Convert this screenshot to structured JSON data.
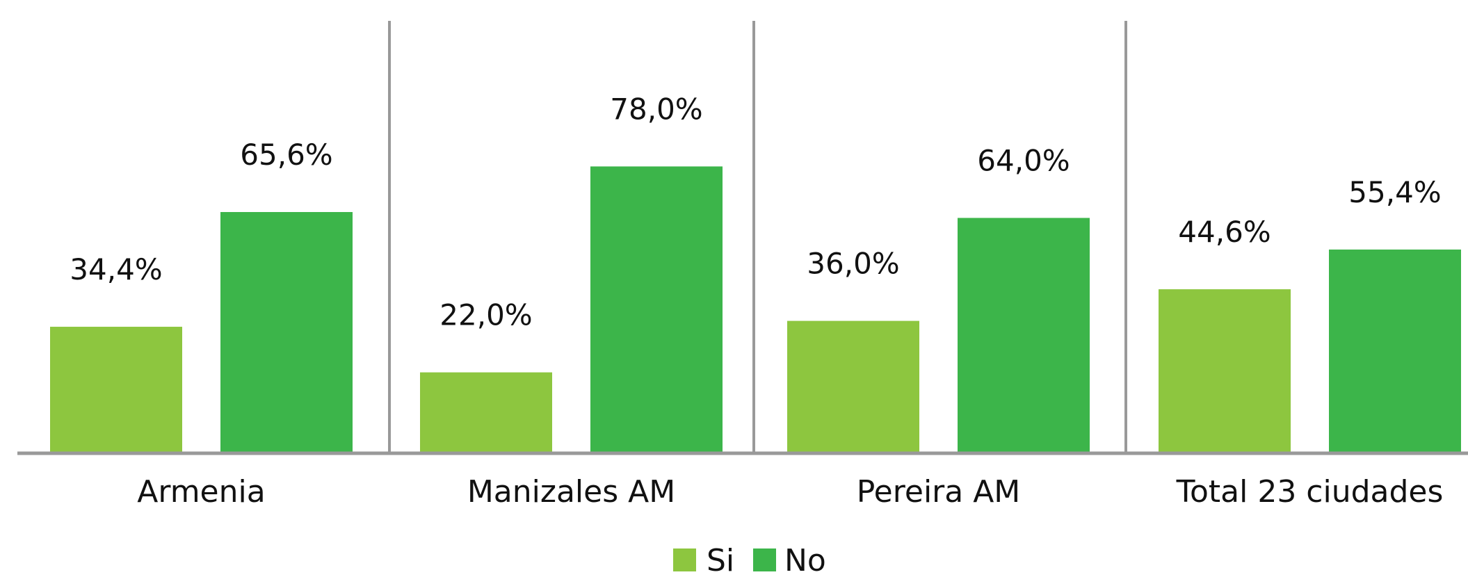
{
  "chart_data": {
    "type": "bar",
    "categories": [
      "Armenia",
      "Manizales AM",
      "Pereira AM",
      "Total 23 ciudades"
    ],
    "series": [
      {
        "name": "Si",
        "values": [
          34.4,
          22.0,
          36.0,
          44.6
        ],
        "labels": [
          "34,4%",
          "22,0%",
          "36,0%",
          "44,6%"
        ],
        "color": "#8dc63f"
      },
      {
        "name": "No",
        "values": [
          65.6,
          78.0,
          64.0,
          55.4
        ],
        "labels": [
          "65,6%",
          "78,0%",
          "64,0%",
          "55,4%"
        ],
        "color": "#3cb54a"
      }
    ],
    "value_unit": "%",
    "ylim": [
      0,
      100
    ],
    "grid": false,
    "group_dividers": true,
    "axis_color": "#999999",
    "legend_position": "bottom-center"
  }
}
